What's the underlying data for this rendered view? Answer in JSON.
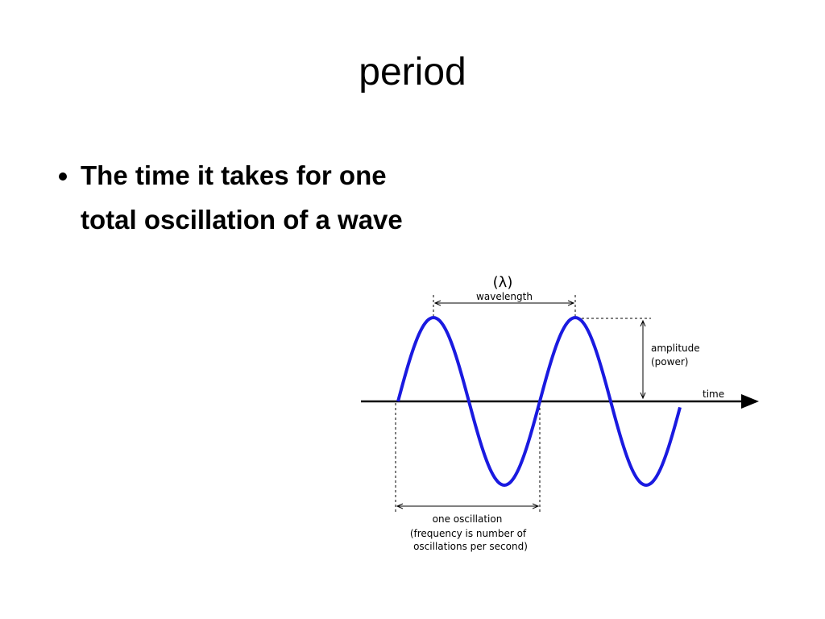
{
  "title": "period",
  "bullets": [
    "The time it takes for one total oscillation of a wave"
  ],
  "diagram": {
    "lambda": "(λ)",
    "wavelength": "wavelength",
    "amplitude": "amplitude",
    "power": "(power)",
    "time": "time",
    "oscillation": "one oscillation",
    "note_line1": "(frequency is number of",
    "note_line2": "oscillations per second)"
  }
}
